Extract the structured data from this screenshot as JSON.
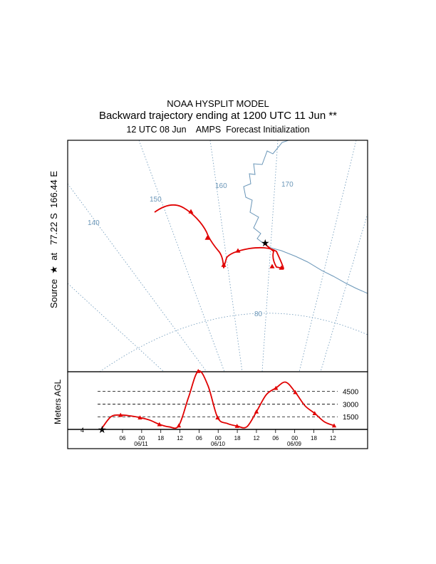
{
  "header": {
    "title": "NOAA HYSPLIT MODEL",
    "subtitle": "Backward trajectory ending at 1200 UTC 11 Jun **",
    "meteo": "12 UTC 08 Jun    AMPS  Forecast Initialization"
  },
  "source_label": "Source  ★  at   77.22 S  166.44 E",
  "colors": {
    "trajectory": "#e00000",
    "map_lines": "#6a96b8",
    "frame": "#000000",
    "text": "#000000"
  },
  "chart_data": [
    {
      "type": "map",
      "meridian_labels": [
        "140",
        "150",
        "160",
        "170"
      ],
      "parallel_labels": [
        "80"
      ],
      "source_marker": "star"
    },
    {
      "type": "line",
      "ylabel": "Meters AGL",
      "reference_levels": [
        {
          "label": "4500",
          "value": 4500
        },
        {
          "label": "3000",
          "value": 3000
        },
        {
          "label": "1500",
          "value": 1500
        }
      ],
      "ylim": [
        0,
        7000
      ],
      "y0_label": "4",
      "time_ticks": [
        "06",
        "00",
        "18",
        "12",
        "06",
        "00",
        "18",
        "12",
        "06",
        "00",
        "18",
        "12"
      ],
      "date_labels": [
        "06/11",
        "06/10",
        "06/09"
      ],
      "series": [
        {
          "hours_before_end": [
            0,
            3,
            6,
            9,
            12,
            15,
            18,
            21,
            24,
            27,
            30,
            33,
            36,
            39,
            42,
            45,
            48,
            51,
            54,
            57,
            60,
            63,
            66,
            69,
            72
          ],
          "height_m": [
            4,
            1500,
            1700,
            1600,
            1400,
            1100,
            600,
            300,
            450,
            3800,
            6900,
            5200,
            1400,
            700,
            400,
            300,
            2100,
            4100,
            4900,
            5600,
            4400,
            2800,
            1900,
            900,
            450
          ],
          "markers_every_hours": 6
        }
      ]
    }
  ]
}
